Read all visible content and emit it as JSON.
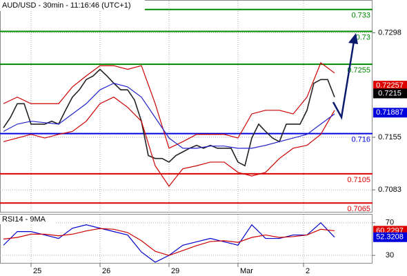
{
  "chart_data": [
    {
      "type": "line",
      "title": "AUD/USD - 30min - 11:16:46 (UTC+1)",
      "xlim": [
        -0.5,
        53.5
      ],
      "xticks": [
        {
          "value": 4,
          "label": "25"
        },
        {
          "value": 14,
          "label": "26"
        },
        {
          "value": 24,
          "label": "29"
        },
        {
          "value": 34,
          "label": "Mar"
        },
        {
          "value": 43.5,
          "label": "2"
        }
      ],
      "ylim": [
        0.7052,
        0.7342
      ],
      "yticks": [
        0.7083,
        0.7155,
        0.7298
      ],
      "grid": true,
      "series": [
        {
          "color": "#222222",
          "x": [
            0,
            1,
            2,
            3,
            4,
            5,
            6,
            7,
            8,
            9,
            10,
            11,
            12,
            13,
            14,
            15,
            16,
            17,
            18,
            19,
            20,
            21,
            22,
            23,
            24,
            25,
            26,
            27,
            28,
            29,
            30,
            31,
            32,
            33,
            34,
            35,
            36,
            37,
            38,
            39,
            40,
            41,
            42,
            43,
            44,
            45,
            46,
            47,
            48
          ],
          "values": [
            0.7168,
            0.7182,
            0.7201,
            0.7201,
            0.7173,
            0.7173,
            0.7173,
            0.7177,
            0.7173,
            0.7192,
            0.721,
            0.722,
            0.7234,
            0.7239,
            0.7248,
            0.7239,
            0.7229,
            0.722,
            0.722,
            0.7206,
            0.7177,
            0.713,
            0.7126,
            0.7126,
            0.7121,
            0.713,
            0.7135,
            0.714,
            0.7144,
            0.714,
            0.7144,
            0.714,
            0.714,
            0.714,
            0.7121,
            0.7116,
            0.7154,
            0.7173,
            0.7163,
            0.7154,
            0.7149,
            0.7173,
            0.7173,
            0.7173,
            0.7192,
            0.7229,
            0.7234,
            0.7234,
            0.721
          ]
        },
        {
          "color": "#cc0000",
          "x": [
            0,
            2,
            4,
            6,
            8,
            10,
            12,
            14,
            16,
            18,
            20,
            22,
            24,
            26,
            28,
            30,
            32,
            34,
            36,
            38,
            40,
            42,
            44,
            46,
            48
          ],
          "values": [
            0.7201,
            0.721,
            0.7201,
            0.7201,
            0.7201,
            0.7224,
            0.7239,
            0.7253,
            0.7253,
            0.7248,
            0.7253,
            0.7201,
            0.714,
            0.7149,
            0.7159,
            0.7159,
            0.7159,
            0.7154,
            0.7187,
            0.7192,
            0.7192,
            0.7187,
            0.721,
            0.7257,
            0.7243
          ]
        },
        {
          "color": "#cc0000",
          "x": [
            0,
            2,
            4,
            6,
            8,
            10,
            12,
            14,
            16,
            18,
            20,
            22,
            24,
            26,
            28,
            30,
            32,
            34,
            36,
            38,
            40,
            42,
            44,
            46,
            48
          ],
          "values": [
            0.7149,
            0.7154,
            0.7159,
            0.7154,
            0.7159,
            0.7163,
            0.7177,
            0.7201,
            0.721,
            0.7196,
            0.7177,
            0.7116,
            0.7088,
            0.7112,
            0.7116,
            0.7121,
            0.7121,
            0.7107,
            0.7102,
            0.7107,
            0.7126,
            0.714,
            0.7144,
            0.7159,
            0.7192
          ]
        },
        {
          "color": "#2222cc",
          "x": [
            0,
            2,
            4,
            6,
            8,
            10,
            12,
            14,
            16,
            18,
            20,
            22,
            24,
            26,
            28,
            30,
            32,
            34,
            36,
            38,
            40,
            42,
            44,
            46,
            48
          ],
          "values": [
            0.7163,
            0.7173,
            0.7177,
            0.7175,
            0.7173,
            0.7187,
            0.7201,
            0.722,
            0.7229,
            0.7224,
            0.721,
            0.7182,
            0.7154,
            0.714,
            0.714,
            0.7143,
            0.7143,
            0.714,
            0.714,
            0.7144,
            0.7149,
            0.7154,
            0.7159,
            0.7173,
            0.7187
          ]
        }
      ],
      "levels": [
        {
          "value": 0.733,
          "color": "#008800"
        },
        {
          "value": 0.73,
          "color": "#008800"
        },
        {
          "value": 0.7255,
          "color": "#008800"
        },
        {
          "value": 0.716,
          "color": "#0000dd"
        },
        {
          "value": 0.7105,
          "color": "#dd0000"
        },
        {
          "value": 0.7065,
          "color": "#dd0000"
        }
      ],
      "price_labels": [
        {
          "value": 0.72257,
          "color": "#dd0000"
        },
        {
          "value": 0.7215,
          "color": "#000000"
        },
        {
          "value": 0.71887,
          "color": "#0000dd"
        }
      ]
    },
    {
      "type": "line",
      "title": "RSI14 - 9MA",
      "xlim": [
        -0.5,
        53.5
      ],
      "ylim": [
        20,
        80
      ],
      "yticks": [
        30,
        70
      ],
      "series": [
        {
          "color": "#0000cc",
          "x": [
            0,
            2,
            4,
            6,
            8,
            10,
            12,
            14,
            16,
            18,
            20,
            22,
            24,
            26,
            28,
            30,
            32,
            34,
            36,
            38,
            40,
            42,
            44,
            46,
            48
          ],
          "values": [
            42.5,
            59.2,
            59.2,
            55,
            50.8,
            63.3,
            67.5,
            63.3,
            59.2,
            55,
            34.2,
            21.7,
            30,
            42.5,
            46.7,
            50.8,
            46.7,
            42.5,
            67.5,
            50.8,
            50.8,
            55,
            55,
            70,
            52.3
          ]
        },
        {
          "color": "#cc0000",
          "x": [
            0,
            2,
            4,
            6,
            8,
            10,
            12,
            14,
            16,
            18,
            20,
            22,
            24,
            26,
            28,
            30,
            32,
            34,
            36,
            38,
            40,
            42,
            44,
            46,
            48
          ],
          "values": [
            50,
            52,
            56,
            56,
            54,
            56,
            60,
            63,
            62,
            58,
            48,
            35,
            30,
            36,
            42,
            47,
            48,
            46,
            52,
            55,
            52,
            53,
            55,
            62,
            60.2
          ]
        }
      ],
      "price_labels": [
        {
          "value": 60.2297,
          "color": "#dd0000"
        },
        {
          "value": 52.3208,
          "color": "#0000dd"
        }
      ]
    }
  ]
}
